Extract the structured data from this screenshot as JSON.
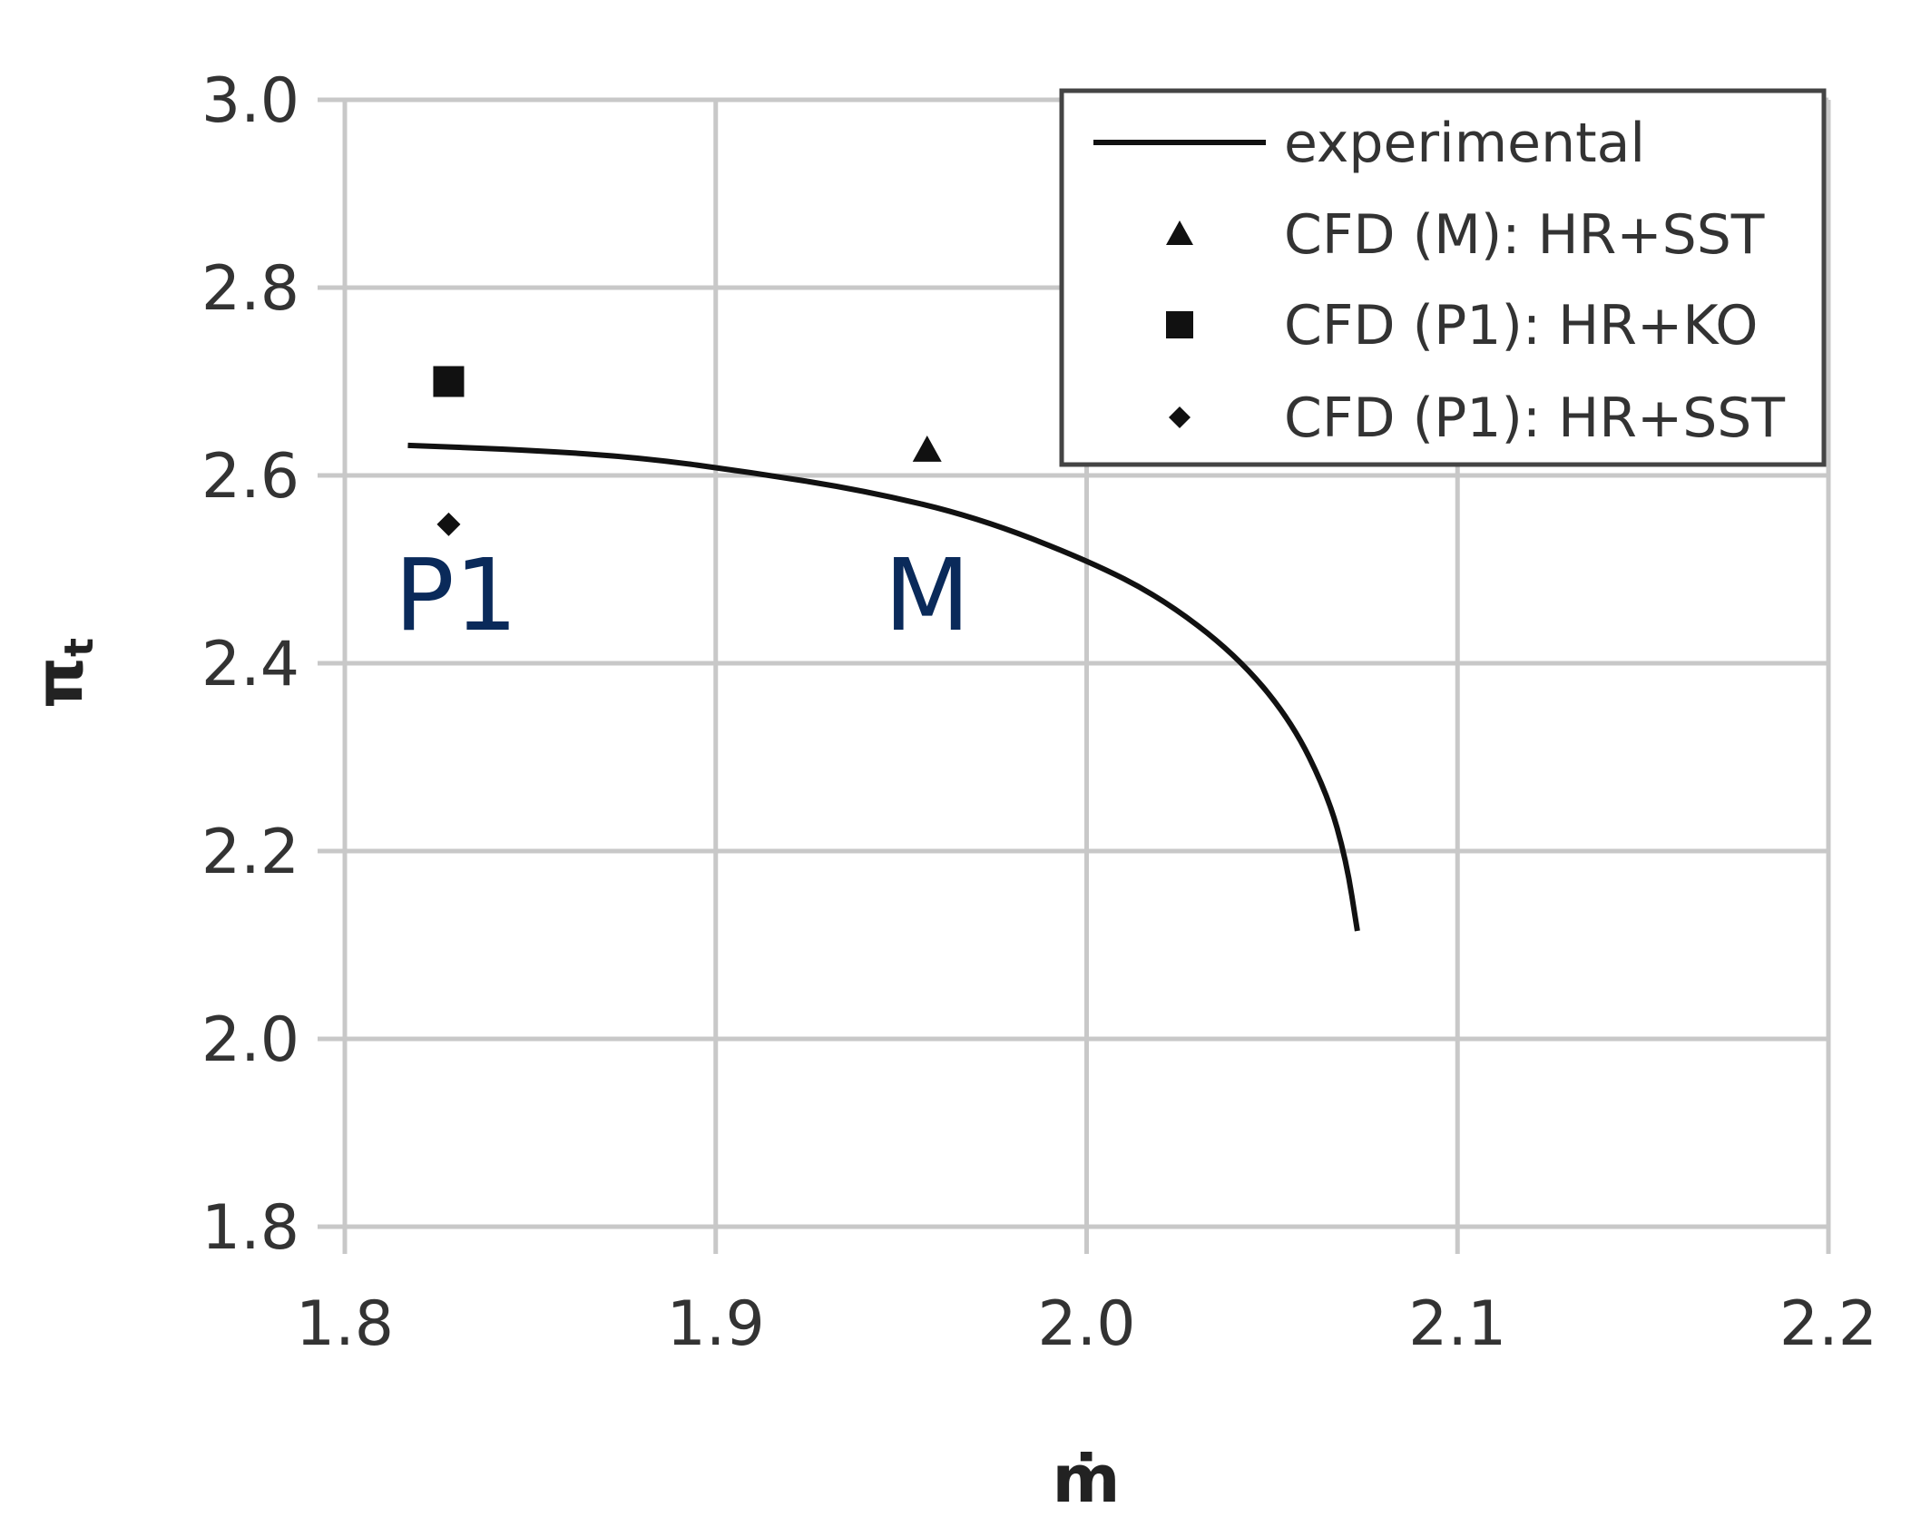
{
  "chart_data": {
    "type": "line",
    "title": "",
    "xlabel": "ṁ",
    "ylabel": "π",
    "ylabel_subscript": "t",
    "xlim": [
      1.8,
      2.2
    ],
    "ylim": [
      1.8,
      3.0
    ],
    "x_ticks": [
      "1.8",
      "1.9",
      "2.0",
      "2.1",
      "2.2"
    ],
    "y_ticks": [
      "1.8",
      "2.0",
      "2.2",
      "2.4",
      "2.6",
      "2.8",
      "3.0"
    ],
    "grid": true,
    "legend_position": "top-right",
    "series": [
      {
        "name": "experimental",
        "kind": "line",
        "color": "#111111",
        "points": [
          [
            1.817,
            2.632
          ],
          [
            1.85,
            2.627
          ],
          [
            1.88,
            2.619
          ],
          [
            1.91,
            2.603
          ],
          [
            1.94,
            2.584
          ],
          [
            1.97,
            2.556
          ],
          [
            2.0,
            2.51
          ],
          [
            2.02,
            2.47
          ],
          [
            2.04,
            2.41
          ],
          [
            2.055,
            2.34
          ],
          [
            2.065,
            2.26
          ],
          [
            2.07,
            2.19
          ],
          [
            2.073,
            2.115
          ]
        ]
      },
      {
        "name": "CFD (M): HR+SST",
        "kind": "marker",
        "marker": "triangle",
        "color": "#111111",
        "points": [
          [
            1.957,
            2.627
          ]
        ]
      },
      {
        "name": "CFD (P1): HR+KO",
        "kind": "marker",
        "marker": "square",
        "color": "#111111",
        "points": [
          [
            1.828,
            2.7
          ]
        ]
      },
      {
        "name": "CFD (P1): HR+SST",
        "kind": "marker",
        "marker": "diamond",
        "color": "#111111",
        "points": [
          [
            1.828,
            2.548
          ]
        ]
      }
    ],
    "annotations": [
      {
        "text": "P1",
        "x": 1.83,
        "y": 2.48,
        "color": "#0a2a5a"
      },
      {
        "text": "M",
        "x": 1.957,
        "y": 2.48,
        "color": "#0a2a5a"
      }
    ]
  }
}
